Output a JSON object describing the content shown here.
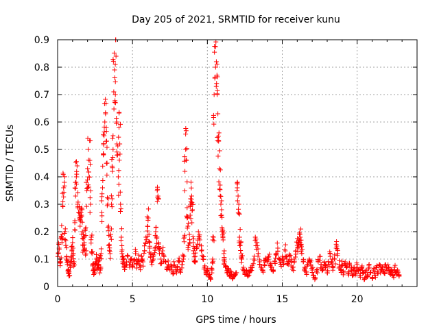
{
  "chart_data": {
    "type": "scatter",
    "title": "Day 205 of 2021, SRMTID for receiver kunu",
    "xlabel": "GPS time / hours",
    "ylabel": "SRMTID / TECUs",
    "xlim": [
      0,
      24
    ],
    "ylim": [
      0,
      0.9
    ],
    "x_ticks": [
      0,
      5,
      10,
      15,
      20
    ],
    "y_ticks": [
      0,
      0.1,
      0.2,
      0.3,
      0.4,
      0.5,
      0.6,
      0.7,
      0.8,
      0.9
    ],
    "x_tick_labels": [
      "0",
      "5",
      "10",
      "15",
      "20"
    ],
    "y_tick_labels": [
      "0",
      "0.1",
      "0.2",
      "0.3",
      "0.4",
      "0.5",
      "0.6",
      "0.7",
      "0.8",
      "0.9"
    ],
    "grid": true,
    "marker": "+",
    "color": "#ff0000",
    "x_end": 22.8,
    "points": [
      [
        0.05,
        0.12
      ],
      [
        0.1,
        0.14
      ],
      [
        0.15,
        0.1
      ],
      [
        0.2,
        0.09
      ],
      [
        0.25,
        0.18
      ],
      [
        0.3,
        0.19
      ],
      [
        0.35,
        0.31
      ],
      [
        0.4,
        0.36
      ],
      [
        0.45,
        0.38
      ],
      [
        0.5,
        0.2
      ],
      [
        0.55,
        0.15
      ],
      [
        0.6,
        0.11
      ],
      [
        0.65,
        0.08
      ],
      [
        0.7,
        0.06
      ],
      [
        0.75,
        0.05
      ],
      [
        0.8,
        0.04
      ],
      [
        0.85,
        0.07
      ],
      [
        0.9,
        0.1
      ],
      [
        0.95,
        0.13
      ],
      [
        1.0,
        0.16
      ],
      [
        1.05,
        0.12
      ],
      [
        1.1,
        0.09
      ],
      [
        1.15,
        0.24
      ],
      [
        1.2,
        0.33
      ],
      [
        1.25,
        0.4
      ],
      [
        1.3,
        0.44
      ],
      [
        1.35,
        0.3
      ],
      [
        1.4,
        0.27
      ],
      [
        1.45,
        0.25
      ],
      [
        1.5,
        0.22
      ],
      [
        1.55,
        0.28
      ],
      [
        1.6,
        0.26
      ],
      [
        1.65,
        0.2
      ],
      [
        1.7,
        0.15
      ],
      [
        1.75,
        0.18
      ],
      [
        1.8,
        0.14
      ],
      [
        1.85,
        0.21
      ],
      [
        1.9,
        0.13
      ],
      [
        1.95,
        0.35
      ],
      [
        2.0,
        0.43
      ],
      [
        2.05,
        0.5
      ],
      [
        2.1,
        0.4
      ],
      [
        2.15,
        0.46
      ],
      [
        2.2,
        0.3
      ],
      [
        2.25,
        0.18
      ],
      [
        2.3,
        0.12
      ],
      [
        2.35,
        0.08
      ],
      [
        2.4,
        0.06
      ],
      [
        2.45,
        0.05
      ],
      [
        2.5,
        0.07
      ],
      [
        2.55,
        0.09
      ],
      [
        2.6,
        0.1
      ],
      [
        2.65,
        0.07
      ],
      [
        2.7,
        0.09
      ],
      [
        2.75,
        0.08
      ],
      [
        2.8,
        0.1
      ],
      [
        2.85,
        0.06
      ],
      [
        2.9,
        0.12
      ],
      [
        2.95,
        0.27
      ],
      [
        3.0,
        0.36
      ],
      [
        3.05,
        0.48
      ],
      [
        3.1,
        0.55
      ],
      [
        3.15,
        0.6
      ],
      [
        3.2,
        0.63
      ],
      [
        3.25,
        0.58
      ],
      [
        3.3,
        0.45
      ],
      [
        3.35,
        0.3
      ],
      [
        3.4,
        0.22
      ],
      [
        3.45,
        0.15
      ],
      [
        3.5,
        0.12
      ],
      [
        3.55,
        0.19
      ],
      [
        3.6,
        0.3
      ],
      [
        3.65,
        0.42
      ],
      [
        3.7,
        0.55
      ],
      [
        3.75,
        0.71
      ],
      [
        3.8,
        0.79
      ],
      [
        3.85,
        0.81
      ],
      [
        3.9,
        0.84
      ],
      [
        3.95,
        0.6
      ],
      [
        4.0,
        0.48
      ],
      [
        4.05,
        0.4
      ],
      [
        4.1,
        0.58
      ],
      [
        4.15,
        0.52
      ],
      [
        4.2,
        0.3
      ],
      [
        4.25,
        0.18
      ],
      [
        4.3,
        0.12
      ],
      [
        4.35,
        0.09
      ],
      [
        4.4,
        0.1
      ],
      [
        4.45,
        0.08
      ],
      [
        4.5,
        0.07
      ],
      [
        4.6,
        0.09
      ],
      [
        4.7,
        0.11
      ],
      [
        4.8,
        0.08
      ],
      [
        4.9,
        0.1
      ],
      [
        5.0,
        0.07
      ],
      [
        5.1,
        0.09
      ],
      [
        5.2,
        0.12
      ],
      [
        5.3,
        0.08
      ],
      [
        5.4,
        0.1
      ],
      [
        5.5,
        0.07
      ],
      [
        5.6,
        0.11
      ],
      [
        5.7,
        0.09
      ],
      [
        5.8,
        0.13
      ],
      [
        5.9,
        0.18
      ],
      [
        6.0,
        0.22
      ],
      [
        6.05,
        0.25
      ],
      [
        6.1,
        0.19
      ],
      [
        6.15,
        0.14
      ],
      [
        6.2,
        0.11
      ],
      [
        6.3,
        0.08
      ],
      [
        6.4,
        0.1
      ],
      [
        6.5,
        0.14
      ],
      [
        6.55,
        0.2
      ],
      [
        6.6,
        0.18
      ],
      [
        6.65,
        0.35
      ],
      [
        6.7,
        0.33
      ],
      [
        6.75,
        0.16
      ],
      [
        6.8,
        0.12
      ],
      [
        6.9,
        0.1
      ],
      [
        7.0,
        0.13
      ],
      [
        7.1,
        0.11
      ],
      [
        7.2,
        0.09
      ],
      [
        7.3,
        0.07
      ],
      [
        7.4,
        0.08
      ],
      [
        7.5,
        0.06
      ],
      [
        7.6,
        0.07
      ],
      [
        7.7,
        0.05
      ],
      [
        7.8,
        0.08
      ],
      [
        7.9,
        0.06
      ],
      [
        8.0,
        0.07
      ],
      [
        8.1,
        0.09
      ],
      [
        8.2,
        0.06
      ],
      [
        8.3,
        0.08
      ],
      [
        8.4,
        0.1
      ],
      [
        8.45,
        0.18
      ],
      [
        8.5,
        0.42
      ],
      [
        8.55,
        0.5
      ],
      [
        8.6,
        0.46
      ],
      [
        8.65,
        0.25
      ],
      [
        8.7,
        0.22
      ],
      [
        8.75,
        0.15
      ],
      [
        8.8,
        0.19
      ],
      [
        8.85,
        0.26
      ],
      [
        8.9,
        0.31
      ],
      [
        8.95,
        0.33
      ],
      [
        9.0,
        0.28
      ],
      [
        9.05,
        0.16
      ],
      [
        9.1,
        0.12
      ],
      [
        9.15,
        0.09
      ],
      [
        9.2,
        0.11
      ],
      [
        9.3,
        0.14
      ],
      [
        9.4,
        0.2
      ],
      [
        9.5,
        0.17
      ],
      [
        9.6,
        0.13
      ],
      [
        9.7,
        0.1
      ],
      [
        9.8,
        0.07
      ],
      [
        9.9,
        0.05
      ],
      [
        10.0,
        0.06
      ],
      [
        10.1,
        0.04
      ],
      [
        10.2,
        0.03
      ],
      [
        10.3,
        0.06
      ],
      [
        10.35,
        0.1
      ],
      [
        10.4,
        0.18
      ],
      [
        10.45,
        0.7
      ],
      [
        10.5,
        0.76
      ],
      [
        10.55,
        0.8
      ],
      [
        10.6,
        0.82
      ],
      [
        10.65,
        0.7
      ],
      [
        10.7,
        0.63
      ],
      [
        10.75,
        0.53
      ],
      [
        10.8,
        0.43
      ],
      [
        10.85,
        0.37
      ],
      [
        10.9,
        0.3
      ],
      [
        10.95,
        0.26
      ],
      [
        11.0,
        0.2
      ],
      [
        11.05,
        0.17
      ],
      [
        11.1,
        0.12
      ],
      [
        11.15,
        0.09
      ],
      [
        11.2,
        0.07
      ],
      [
        11.3,
        0.05
      ],
      [
        11.4,
        0.06
      ],
      [
        11.5,
        0.04
      ],
      [
        11.6,
        0.05
      ],
      [
        11.7,
        0.03
      ],
      [
        11.8,
        0.04
      ],
      [
        11.9,
        0.05
      ],
      [
        12.0,
        0.36
      ],
      [
        12.05,
        0.33
      ],
      [
        12.1,
        0.3
      ],
      [
        12.15,
        0.18
      ],
      [
        12.2,
        0.15
      ],
      [
        12.25,
        0.12
      ],
      [
        12.3,
        0.1
      ],
      [
        12.4,
        0.07
      ],
      [
        12.5,
        0.05
      ],
      [
        12.6,
        0.06
      ],
      [
        12.7,
        0.04
      ],
      [
        12.8,
        0.05
      ],
      [
        12.9,
        0.06
      ],
      [
        13.0,
        0.07
      ],
      [
        13.1,
        0.1
      ],
      [
        13.2,
        0.18
      ],
      [
        13.3,
        0.16
      ],
      [
        13.4,
        0.12
      ],
      [
        13.5,
        0.09
      ],
      [
        13.6,
        0.07
      ],
      [
        13.7,
        0.06
      ],
      [
        13.8,
        0.08
      ],
      [
        13.9,
        0.1
      ],
      [
        14.0,
        0.09
      ],
      [
        14.1,
        0.11
      ],
      [
        14.2,
        0.08
      ],
      [
        14.3,
        0.07
      ],
      [
        14.4,
        0.06
      ],
      [
        14.5,
        0.09
      ],
      [
        14.6,
        0.12
      ],
      [
        14.7,
        0.14
      ],
      [
        14.8,
        0.1
      ],
      [
        14.9,
        0.08
      ],
      [
        15.0,
        0.11
      ],
      [
        15.1,
        0.09
      ],
      [
        15.2,
        0.13
      ],
      [
        15.3,
        0.1
      ],
      [
        15.4,
        0.08
      ],
      [
        15.5,
        0.11
      ],
      [
        15.6,
        0.09
      ],
      [
        15.7,
        0.07
      ],
      [
        15.8,
        0.1
      ],
      [
        15.9,
        0.13
      ],
      [
        16.0,
        0.15
      ],
      [
        16.05,
        0.16
      ],
      [
        16.1,
        0.17
      ],
      [
        16.15,
        0.19
      ],
      [
        16.2,
        0.18
      ],
      [
        16.25,
        0.15
      ],
      [
        16.3,
        0.12
      ],
      [
        16.4,
        0.09
      ],
      [
        16.5,
        0.07
      ],
      [
        16.6,
        0.05
      ],
      [
        16.7,
        0.08
      ],
      [
        16.8,
        0.1
      ],
      [
        16.9,
        0.08
      ],
      [
        17.0,
        0.06
      ],
      [
        17.1,
        0.04
      ],
      [
        17.2,
        0.03
      ],
      [
        17.3,
        0.06
      ],
      [
        17.4,
        0.09
      ],
      [
        17.5,
        0.11
      ],
      [
        17.6,
        0.08
      ],
      [
        17.7,
        0.06
      ],
      [
        17.8,
        0.09
      ],
      [
        17.9,
        0.07
      ],
      [
        18.0,
        0.05
      ],
      [
        18.1,
        0.08
      ],
      [
        18.2,
        0.11
      ],
      [
        18.3,
        0.09
      ],
      [
        18.4,
        0.07
      ],
      [
        18.5,
        0.1
      ],
      [
        18.6,
        0.14
      ],
      [
        18.7,
        0.12
      ],
      [
        18.8,
        0.08
      ],
      [
        18.9,
        0.06
      ],
      [
        19.0,
        0.08
      ],
      [
        19.1,
        0.05
      ],
      [
        19.2,
        0.09
      ],
      [
        19.3,
        0.07
      ],
      [
        19.4,
        0.05
      ],
      [
        19.5,
        0.08
      ],
      [
        19.6,
        0.06
      ],
      [
        19.7,
        0.04
      ],
      [
        19.8,
        0.07
      ],
      [
        19.9,
        0.05
      ],
      [
        20.0,
        0.08
      ],
      [
        20.1,
        0.06
      ],
      [
        20.2,
        0.04
      ],
      [
        20.3,
        0.07
      ],
      [
        20.4,
        0.05
      ],
      [
        20.5,
        0.03
      ],
      [
        20.6,
        0.06
      ],
      [
        20.7,
        0.04
      ],
      [
        20.8,
        0.07
      ],
      [
        20.9,
        0.05
      ],
      [
        21.0,
        0.03
      ],
      [
        21.1,
        0.06
      ],
      [
        21.2,
        0.04
      ],
      [
        21.3,
        0.07
      ],
      [
        21.4,
        0.05
      ],
      [
        21.5,
        0.08
      ],
      [
        21.6,
        0.06
      ],
      [
        21.7,
        0.07
      ],
      [
        21.8,
        0.05
      ],
      [
        21.9,
        0.08
      ],
      [
        22.0,
        0.06
      ],
      [
        22.1,
        0.07
      ],
      [
        22.2,
        0.05
      ],
      [
        22.3,
        0.06
      ],
      [
        22.4,
        0.04
      ],
      [
        22.5,
        0.07
      ],
      [
        22.6,
        0.05
      ],
      [
        22.7,
        0.06
      ],
      [
        22.8,
        0.04
      ]
    ]
  }
}
